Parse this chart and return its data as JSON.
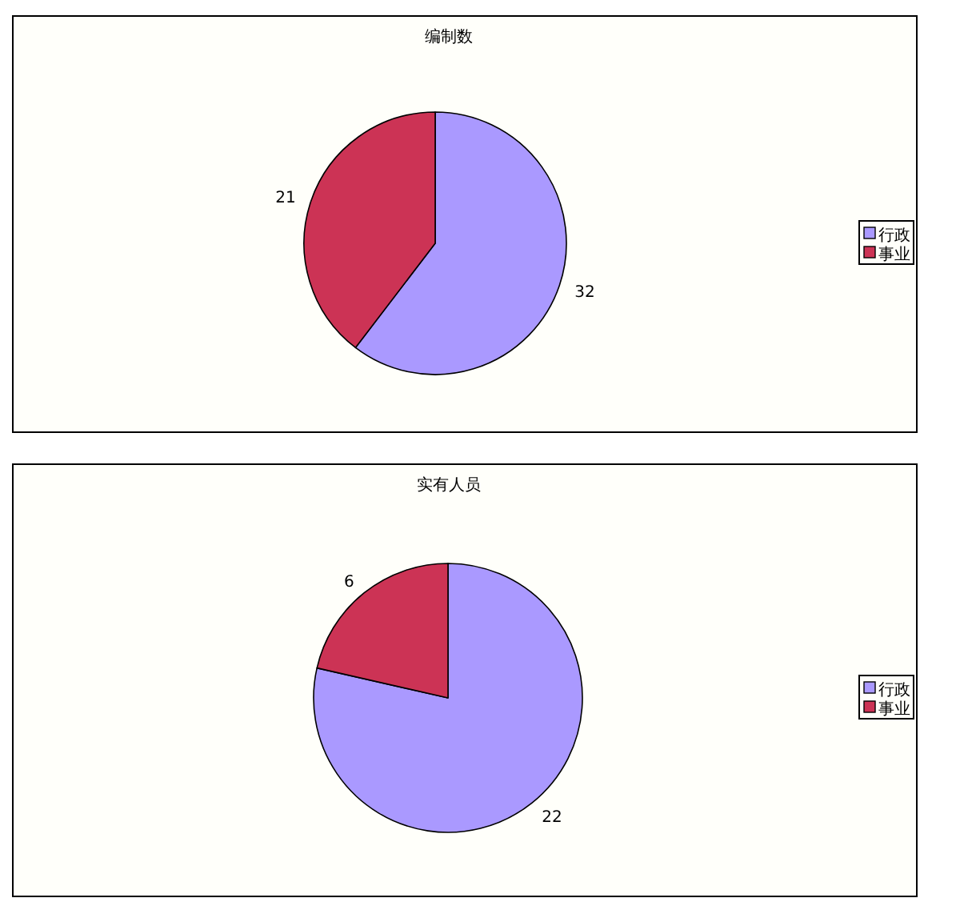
{
  "chart_data": [
    {
      "type": "pie",
      "title": "编制数",
      "categories": [
        "行政",
        "事业"
      ],
      "values": [
        32,
        21
      ],
      "colors": [
        "#aa99ff",
        "#cc3355"
      ],
      "data_labels": true,
      "legend": "right"
    },
    {
      "type": "pie",
      "title": "实有人员",
      "categories": [
        "行政",
        "事业"
      ],
      "values": [
        22,
        6
      ],
      "colors": [
        "#aa99ff",
        "#cc3355"
      ],
      "data_labels": true,
      "legend": "right"
    }
  ]
}
